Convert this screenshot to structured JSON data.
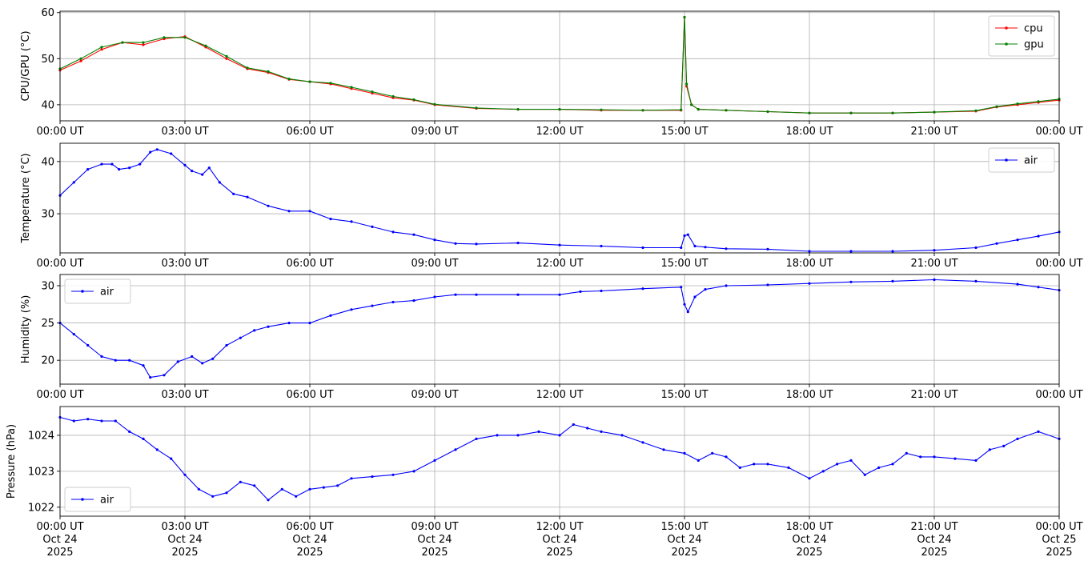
{
  "chart_data": [
    {
      "type": "line",
      "ylabel": "CPU/GPU (°C)",
      "xlim": [
        "2025-10-24T00:00",
        "2025-10-25T00:00"
      ],
      "ylim": [
        36.5,
        60.3
      ],
      "yticks": [
        40,
        50,
        60
      ],
      "grid": true,
      "legend": "top-right",
      "series": [
        {
          "name": "cpu",
          "color": "#ff0000",
          "x": [
            "00:00",
            "00:30",
            "01:00",
            "01:30",
            "02:00",
            "02:30",
            "03:00",
            "03:30",
            "04:00",
            "04:30",
            "05:00",
            "05:30",
            "06:00",
            "06:30",
            "07:00",
            "07:30",
            "08:00",
            "08:30",
            "09:00",
            "10:00",
            "11:00",
            "12:00",
            "13:00",
            "14:00",
            "14:55",
            "15:00",
            "15:03",
            "15:10",
            "15:20",
            "16:00",
            "17:00",
            "18:00",
            "19:00",
            "20:00",
            "21:00",
            "22:00",
            "22:30",
            "23:00",
            "23:30",
            "24:00"
          ],
          "y": [
            47.5,
            49.5,
            52,
            53.5,
            53,
            54.3,
            54.8,
            52.5,
            50,
            47.8,
            47,
            45.5,
            45,
            44.5,
            43.5,
            42.5,
            41.5,
            41,
            40,
            39.2,
            39,
            39,
            38.8,
            38.8,
            38.8,
            59,
            44,
            40,
            39,
            38.8,
            38.5,
            38.2,
            38.2,
            38.2,
            38.4,
            38.6,
            39.5,
            40,
            40.5,
            41
          ]
        },
        {
          "name": "gpu",
          "color": "#008000",
          "x": [
            "00:00",
            "00:30",
            "01:00",
            "01:30",
            "02:00",
            "02:30",
            "03:00",
            "03:30",
            "04:00",
            "04:30",
            "05:00",
            "05:30",
            "06:00",
            "06:30",
            "07:00",
            "07:30",
            "08:00",
            "08:30",
            "09:00",
            "10:00",
            "11:00",
            "12:00",
            "13:00",
            "14:00",
            "14:55",
            "15:00",
            "15:03",
            "15:10",
            "15:20",
            "16:00",
            "17:00",
            "18:00",
            "19:00",
            "20:00",
            "21:00",
            "22:00",
            "22:30",
            "23:00",
            "23:30",
            "24:00"
          ],
          "y": [
            47.8,
            50,
            52.5,
            53.5,
            53.5,
            54.6,
            54.6,
            52.8,
            50.5,
            48,
            47.2,
            45.6,
            45,
            44.7,
            43.8,
            42.8,
            41.8,
            41.1,
            40.1,
            39.3,
            39,
            39,
            38.9,
            38.8,
            38.9,
            59,
            44.5,
            40,
            39,
            38.8,
            38.5,
            38.2,
            38.2,
            38.2,
            38.4,
            38.7,
            39.6,
            40.2,
            40.7,
            41.2
          ]
        }
      ]
    },
    {
      "type": "line",
      "ylabel": "Temperature (°C)",
      "xlim": [
        "2025-10-24T00:00",
        "2025-10-25T00:00"
      ],
      "ylim": [
        22.5,
        43.5
      ],
      "yticks": [
        30,
        40
      ],
      "grid": true,
      "legend": "top-right",
      "series": [
        {
          "name": "air",
          "color": "#0000ff",
          "x": [
            "00:00",
            "00:20",
            "00:40",
            "01:00",
            "01:15",
            "01:25",
            "01:40",
            "01:55",
            "02:10",
            "02:20",
            "02:40",
            "03:00",
            "03:10",
            "03:25",
            "03:35",
            "03:50",
            "04:10",
            "04:30",
            "05:00",
            "05:30",
            "06:00",
            "06:30",
            "07:00",
            "07:30",
            "08:00",
            "08:30",
            "09:00",
            "09:30",
            "10:00",
            "11:00",
            "12:00",
            "13:00",
            "14:00",
            "14:55",
            "15:00",
            "15:05",
            "15:15",
            "15:30",
            "16:00",
            "17:00",
            "18:00",
            "19:00",
            "20:00",
            "21:00",
            "22:00",
            "22:30",
            "23:00",
            "23:30",
            "24:00"
          ],
          "y": [
            33.5,
            36,
            38.5,
            39.5,
            39.5,
            38.5,
            38.8,
            39.5,
            41.8,
            42.3,
            41.5,
            39.3,
            38.2,
            37.5,
            38.8,
            36,
            33.8,
            33.2,
            31.5,
            30.5,
            30.5,
            29,
            28.5,
            27.5,
            26.5,
            26,
            25,
            24.3,
            24.2,
            24.4,
            24,
            23.8,
            23.5,
            23.5,
            25.8,
            26,
            23.8,
            23.6,
            23.3,
            23.2,
            22.8,
            22.8,
            22.8,
            23,
            23.5,
            24.3,
            25,
            25.7,
            26.5
          ]
        }
      ]
    },
    {
      "type": "line",
      "ylabel": "Humidity (%)",
      "xlim": [
        "2025-10-24T00:00",
        "2025-10-25T00:00"
      ],
      "ylim": [
        16.8,
        31.5
      ],
      "yticks": [
        20,
        25,
        30
      ],
      "grid": true,
      "legend": "top-left",
      "series": [
        {
          "name": "air",
          "color": "#0000ff",
          "x": [
            "00:00",
            "00:20",
            "00:40",
            "01:00",
            "01:20",
            "01:40",
            "02:00",
            "02:10",
            "02:30",
            "02:50",
            "03:10",
            "03:25",
            "03:40",
            "04:00",
            "04:20",
            "04:40",
            "05:00",
            "05:30",
            "06:00",
            "06:30",
            "07:00",
            "07:30",
            "08:00",
            "08:30",
            "09:00",
            "09:30",
            "10:00",
            "11:00",
            "12:00",
            "12:30",
            "13:00",
            "14:00",
            "14:55",
            "15:00",
            "15:05",
            "15:15",
            "15:30",
            "16:00",
            "17:00",
            "18:00",
            "19:00",
            "20:00",
            "21:00",
            "22:00",
            "23:00",
            "23:30",
            "24:00"
          ],
          "y": [
            25,
            23.5,
            22,
            20.5,
            20,
            20,
            19.3,
            17.7,
            18,
            19.8,
            20.5,
            19.6,
            20.2,
            22,
            23,
            24,
            24.5,
            25,
            25,
            26,
            26.8,
            27.3,
            27.8,
            28,
            28.5,
            28.8,
            28.8,
            28.8,
            28.8,
            29.2,
            29.3,
            29.6,
            29.8,
            27.5,
            26.5,
            28.5,
            29.5,
            30,
            30.1,
            30.3,
            30.5,
            30.6,
            30.8,
            30.6,
            30.2,
            29.8,
            29.4
          ]
        }
      ]
    },
    {
      "type": "line",
      "ylabel": "Pressure (hPa)",
      "xlabel": "",
      "xlim": [
        "2025-10-24T00:00",
        "2025-10-25T00:00"
      ],
      "ylim": [
        1021.75,
        1024.8
      ],
      "yticks": [
        1022,
        1023,
        1024
      ],
      "grid": true,
      "legend": "bottom-left",
      "series": [
        {
          "name": "air",
          "color": "#0000ff",
          "x": [
            "00:00",
            "00:20",
            "00:40",
            "01:00",
            "01:20",
            "01:40",
            "02:00",
            "02:20",
            "02:40",
            "03:00",
            "03:20",
            "03:40",
            "04:00",
            "04:20",
            "04:40",
            "05:00",
            "05:20",
            "05:40",
            "06:00",
            "06:20",
            "06:40",
            "07:00",
            "07:30",
            "08:00",
            "08:30",
            "09:00",
            "09:30",
            "10:00",
            "10:30",
            "11:00",
            "11:30",
            "12:00",
            "12:20",
            "12:40",
            "13:00",
            "13:30",
            "14:00",
            "14:30",
            "15:00",
            "15:20",
            "15:40",
            "16:00",
            "16:20",
            "16:40",
            "17:00",
            "17:30",
            "18:00",
            "18:20",
            "18:40",
            "19:00",
            "19:20",
            "19:40",
            "20:00",
            "20:20",
            "20:40",
            "21:00",
            "21:30",
            "22:00",
            "22:20",
            "22:40",
            "23:00",
            "23:30",
            "24:00"
          ],
          "y": [
            1024.5,
            1024.4,
            1024.45,
            1024.4,
            1024.4,
            1024.1,
            1023.9,
            1023.6,
            1023.35,
            1022.9,
            1022.5,
            1022.3,
            1022.4,
            1022.7,
            1022.6,
            1022.2,
            1022.5,
            1022.3,
            1022.5,
            1022.55,
            1022.6,
            1022.8,
            1022.85,
            1022.9,
            1023.0,
            1023.3,
            1023.6,
            1023.9,
            1024.0,
            1024.0,
            1024.1,
            1024.0,
            1024.3,
            1024.2,
            1024.1,
            1024.0,
            1023.8,
            1023.6,
            1023.5,
            1023.3,
            1023.5,
            1023.4,
            1023.1,
            1023.2,
            1023.2,
            1023.1,
            1022.8,
            1023.0,
            1023.2,
            1023.3,
            1022.9,
            1023.1,
            1023.2,
            1023.5,
            1023.4,
            1023.4,
            1023.35,
            1023.3,
            1023.6,
            1023.7,
            1023.9,
            1024.1,
            1023.9
          ]
        }
      ]
    }
  ],
  "time_ticks": [
    "00:00 UT",
    "03:00 UT",
    "06:00 UT",
    "09:00 UT",
    "12:00 UT",
    "15:00 UT",
    "18:00 UT",
    "21:00 UT",
    "00:00 UT"
  ],
  "date_ticks": [
    {
      "line2": "Oct 24",
      "line3": "2025"
    },
    {
      "line2": "Oct 24",
      "line3": "2025"
    },
    {
      "line2": "Oct 24",
      "line3": "2025"
    },
    {
      "line2": "Oct 24",
      "line3": "2025"
    },
    {
      "line2": "Oct 24",
      "line3": "2025"
    },
    {
      "line2": "Oct 24",
      "line3": "2025"
    },
    {
      "line2": "Oct 24",
      "line3": "2025"
    },
    {
      "line2": "Oct 24",
      "line3": "2025"
    },
    {
      "line2": "Oct 25",
      "line3": "2025"
    }
  ]
}
